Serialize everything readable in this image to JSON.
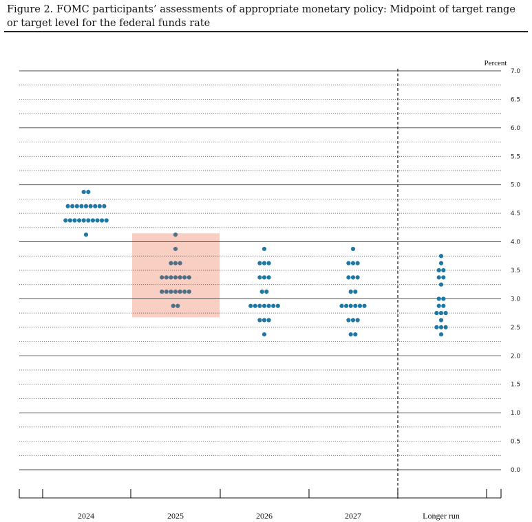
{
  "figure": {
    "title": "Figure 2.  FOMC participants’ assessments of appropriate monetary policy:  Midpoint of target range or target level for the federal funds rate"
  },
  "chart_data": {
    "type": "scatter",
    "unit_label": "Percent",
    "ylim": [
      0,
      7
    ],
    "yticks": [
      "0.0",
      "0.5",
      "1.0",
      "1.5",
      "2.0",
      "2.5",
      "3.0",
      "3.5",
      "4.0",
      "4.5",
      "5.0",
      "5.5",
      "6.0",
      "6.5",
      "7.0"
    ],
    "categories": [
      "2024",
      "2025",
      "2026",
      "2027",
      "Longer run"
    ],
    "highlight_category": "2025",
    "highlight_range": [
      2.675,
      4.15
    ],
    "colors": {
      "dot": "#1f77a4",
      "highlight_dot": "#4f6f86",
      "highlight_fill": "#f9cfc3",
      "grid": "#444444"
    },
    "dots": {
      "2024": [
        {
          "rate": 4.875,
          "count": 2
        },
        {
          "rate": 4.625,
          "count": 9
        },
        {
          "rate": 4.375,
          "count": 10
        },
        {
          "rate": 4.125,
          "count": 1
        }
      ],
      "2025": [
        {
          "rate": 4.125,
          "count": 1
        },
        {
          "rate": 3.875,
          "count": 1
        },
        {
          "rate": 3.625,
          "count": 3
        },
        {
          "rate": 3.375,
          "count": 7
        },
        {
          "rate": 3.125,
          "count": 7
        },
        {
          "rate": 2.875,
          "count": 2
        }
      ],
      "2026": [
        {
          "rate": 3.875,
          "count": 1
        },
        {
          "rate": 3.625,
          "count": 3
        },
        {
          "rate": 3.375,
          "count": 3
        },
        {
          "rate": 3.125,
          "count": 2
        },
        {
          "rate": 2.875,
          "count": 7
        },
        {
          "rate": 2.625,
          "count": 3
        },
        {
          "rate": 2.375,
          "count": 1
        }
      ],
      "2027": [
        {
          "rate": 3.875,
          "count": 1
        },
        {
          "rate": 3.625,
          "count": 3
        },
        {
          "rate": 3.375,
          "count": 3
        },
        {
          "rate": 3.125,
          "count": 2
        },
        {
          "rate": 2.875,
          "count": 6
        },
        {
          "rate": 2.625,
          "count": 3
        },
        {
          "rate": 2.375,
          "count": 2
        }
      ],
      "Longer run": [
        {
          "rate": 3.75,
          "count": 1
        },
        {
          "rate": 3.625,
          "count": 1
        },
        {
          "rate": 3.5,
          "count": 2
        },
        {
          "rate": 3.375,
          "count": 2
        },
        {
          "rate": 3.25,
          "count": 1
        },
        {
          "rate": 3.0,
          "count": 2
        },
        {
          "rate": 2.875,
          "count": 2
        },
        {
          "rate": 2.75,
          "count": 3
        },
        {
          "rate": 2.625,
          "count": 1
        },
        {
          "rate": 2.5,
          "count": 3
        },
        {
          "rate": 2.375,
          "count": 1
        }
      ]
    }
  }
}
